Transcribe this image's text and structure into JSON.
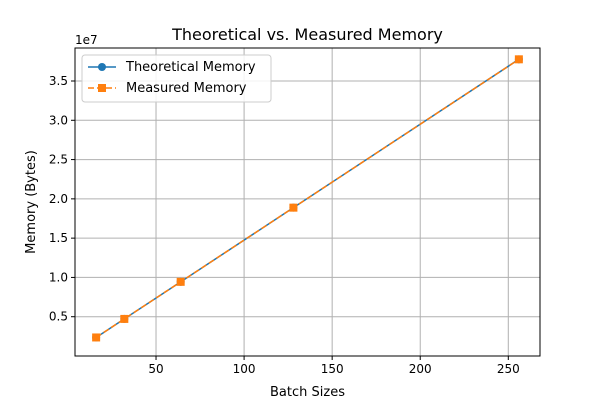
{
  "chart_data": {
    "type": "line",
    "title": "Theoretical vs. Measured Memory",
    "xlabel": "Batch Sizes",
    "ylabel": "Memory (Bytes)",
    "y_offset_label": "1e7",
    "x": [
      16,
      32,
      64,
      128,
      256
    ],
    "series": [
      {
        "name": "Theoretical Memory",
        "values": [
          2360000,
          4720000,
          9440000,
          18880000,
          37760000
        ],
        "color": "#1f77b4",
        "marker": "circle",
        "linestyle": "solid"
      },
      {
        "name": "Measured Memory",
        "values": [
          2360000,
          4720000,
          9440000,
          18880000,
          37760000
        ],
        "color": "#ff7f0e",
        "marker": "square",
        "linestyle": "dashed"
      }
    ],
    "xlim": [
      4,
      268
    ],
    "ylim": [
      0,
      39200000
    ],
    "xticks": [
      50,
      100,
      150,
      200,
      250
    ],
    "xtick_labels": [
      "50",
      "100",
      "150",
      "200",
      "250"
    ],
    "yticks": [
      5000000,
      10000000,
      15000000,
      20000000,
      25000000,
      30000000,
      35000000
    ],
    "ytick_labels": [
      "0.5",
      "1.0",
      "1.5",
      "2.0",
      "2.5",
      "3.0",
      "3.5"
    ],
    "grid": true,
    "legend_position": "top-left"
  }
}
